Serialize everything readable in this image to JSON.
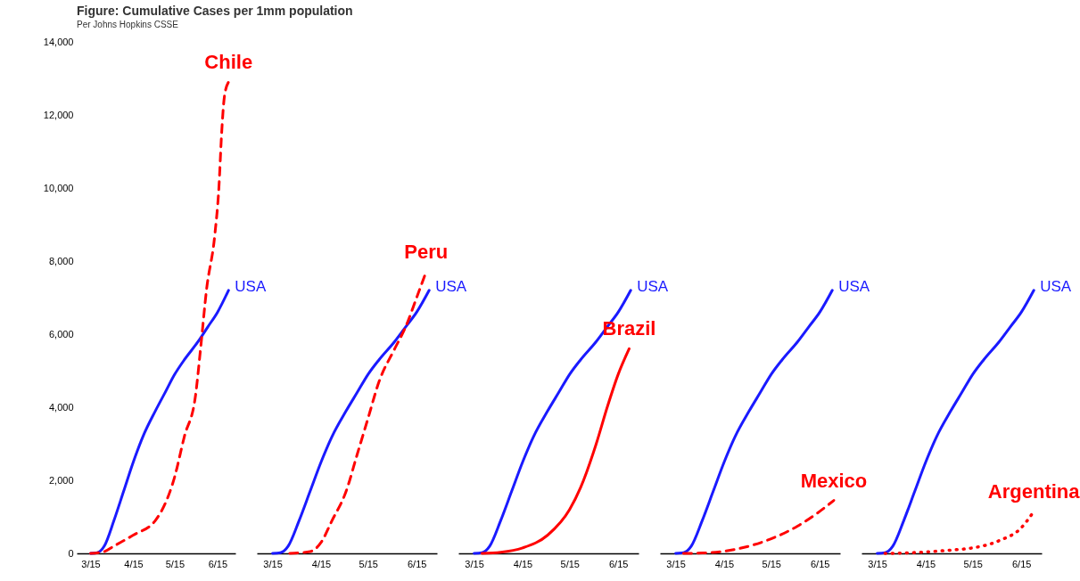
{
  "chart_data": [
    {
      "type": "line",
      "title": "Figure: Cumulative Cases per 1mm population",
      "subtitle": "Per Johns Hopkins CSSE",
      "xlim": [
        "--03-05",
        "--06-28"
      ],
      "xticks": [
        {
          "value": "--03-15",
          "label": "3/15"
        },
        {
          "value": "--04-15",
          "label": "4/15"
        },
        {
          "value": "--05-15",
          "label": "5/15"
        },
        {
          "value": "--06-15",
          "label": "6/15"
        }
      ],
      "ylim": [
        0,
        14000
      ],
      "yticks": [
        {
          "value": 0,
          "label": "0"
        },
        {
          "value": 2000,
          "label": "2,000"
        },
        {
          "value": 4000,
          "label": "4,000"
        },
        {
          "value": 6000,
          "label": "6,000"
        },
        {
          "value": 8000,
          "label": "8,000"
        },
        {
          "value": 10000,
          "label": "10,000"
        },
        {
          "value": 12000,
          "label": "12,000"
        },
        {
          "value": 14000,
          "label": "14,000"
        }
      ],
      "series": [
        {
          "name": "USA",
          "color": "#1a1aff",
          "line_style": "solid",
          "x": [
            "--03-15",
            "--03-20",
            "--03-25",
            "--04-01",
            "--04-08",
            "--04-15",
            "--04-22",
            "--05-01",
            "--05-08",
            "--05-15",
            "--05-22",
            "--06-01",
            "--06-08",
            "--06-15",
            "--06-23"
          ],
          "values": [
            0,
            20,
            200,
            900,
            1700,
            2500,
            3200,
            3900,
            4400,
            4900,
            5300,
            5800,
            6200,
            6600,
            7200
          ]
        },
        {
          "name": "Chile",
          "color": "#ff0000",
          "line_style": "dashed",
          "x": [
            "--03-15",
            "--03-25",
            "--04-01",
            "--04-15",
            "--05-01",
            "--05-15",
            "--05-22",
            "--05-30",
            "--06-03",
            "--06-07",
            "--06-13",
            "--06-16",
            "--06-18",
            "--06-20",
            "--06-23"
          ],
          "values": [
            0,
            50,
            200,
            500,
            900,
            2100,
            3200,
            4300,
            5700,
            7200,
            8700,
            10000,
            11500,
            12500,
            12900
          ]
        }
      ]
    },
    {
      "type": "line",
      "tick_labels": "x",
      "xlim": [
        "--03-05",
        "--06-28"
      ],
      "xticks": [
        {
          "value": "--03-15",
          "label": "3/15"
        },
        {
          "value": "--04-15",
          "label": "4/15"
        },
        {
          "value": "--05-15",
          "label": "5/15"
        },
        {
          "value": "--06-15",
          "label": "6/15"
        }
      ],
      "ylim": [
        0,
        14000
      ],
      "series": [
        {
          "name": "USA",
          "color": "#1a1aff",
          "line_style": "solid",
          "x": [
            "--03-15",
            "--03-20",
            "--03-25",
            "--04-01",
            "--04-08",
            "--04-15",
            "--04-22",
            "--05-01",
            "--05-08",
            "--05-15",
            "--05-22",
            "--06-01",
            "--06-08",
            "--06-15",
            "--06-23"
          ],
          "values": [
            0,
            20,
            200,
            900,
            1700,
            2500,
            3200,
            3900,
            4400,
            4900,
            5300,
            5800,
            6200,
            6600,
            7200
          ]
        },
        {
          "name": "Peru",
          "color": "#ff0000",
          "line_style": "dashed",
          "x": [
            "--03-26",
            "--04-08",
            "--04-15",
            "--04-22",
            "--05-01",
            "--05-08",
            "--05-15",
            "--05-22",
            "--06-01",
            "--06-08",
            "--06-15",
            "--06-21"
          ],
          "values": [
            0,
            50,
            300,
            900,
            1700,
            2700,
            3700,
            4700,
            5600,
            6200,
            7000,
            7700
          ]
        }
      ]
    },
    {
      "type": "line",
      "tick_labels": "x",
      "xlim": [
        "--03-05",
        "--06-28"
      ],
      "xticks": [
        {
          "value": "--03-15",
          "label": "3/15"
        },
        {
          "value": "--04-15",
          "label": "4/15"
        },
        {
          "value": "--05-15",
          "label": "5/15"
        },
        {
          "value": "--06-15",
          "label": "6/15"
        }
      ],
      "ylim": [
        0,
        14000
      ],
      "series": [
        {
          "name": "USA",
          "color": "#1a1aff",
          "line_style": "solid",
          "x": [
            "--03-15",
            "--03-20",
            "--03-25",
            "--04-01",
            "--04-08",
            "--04-15",
            "--04-22",
            "--05-01",
            "--05-08",
            "--05-15",
            "--05-22",
            "--06-01",
            "--06-08",
            "--06-15",
            "--06-23"
          ],
          "values": [
            0,
            20,
            200,
            900,
            1700,
            2500,
            3200,
            3900,
            4400,
            4900,
            5300,
            5800,
            6200,
            6600,
            7200
          ]
        },
        {
          "name": "Brazil",
          "color": "#ff0000",
          "line_style": "solid",
          "x": [
            "--03-20",
            "--04-01",
            "--04-15",
            "--05-01",
            "--05-15",
            "--05-22",
            "--06-01",
            "--06-08",
            "--06-15",
            "--06-22"
          ],
          "values": [
            0,
            30,
            150,
            500,
            1200,
            1800,
            3000,
            4000,
            4900,
            5600
          ]
        }
      ]
    },
    {
      "type": "line",
      "tick_labels": "x",
      "xlim": [
        "--03-05",
        "--06-28"
      ],
      "xticks": [
        {
          "value": "--03-15",
          "label": "3/15"
        },
        {
          "value": "--04-15",
          "label": "4/15"
        },
        {
          "value": "--05-15",
          "label": "5/15"
        },
        {
          "value": "--06-15",
          "label": "6/15"
        }
      ],
      "ylim": [
        0,
        14000
      ],
      "series": [
        {
          "name": "USA",
          "color": "#1a1aff",
          "line_style": "solid",
          "x": [
            "--03-15",
            "--03-20",
            "--03-25",
            "--04-01",
            "--04-08",
            "--04-15",
            "--04-22",
            "--05-01",
            "--05-08",
            "--05-15",
            "--05-22",
            "--06-01",
            "--06-08",
            "--06-15",
            "--06-23"
          ],
          "values": [
            0,
            20,
            200,
            900,
            1700,
            2500,
            3200,
            3900,
            4400,
            4900,
            5300,
            5800,
            6200,
            6600,
            7200
          ]
        },
        {
          "name": "Mexico",
          "color": "#ff0000",
          "line_style": "dashed",
          "x": [
            "--03-20",
            "--04-01",
            "--04-15",
            "--05-01",
            "--05-15",
            "--06-01",
            "--06-15",
            "--06-24"
          ],
          "values": [
            0,
            10,
            60,
            200,
            400,
            750,
            1150,
            1450
          ]
        }
      ]
    },
    {
      "type": "line",
      "tick_labels": "x",
      "xlim": [
        "--03-05",
        "--06-28"
      ],
      "xticks": [
        {
          "value": "--03-15",
          "label": "3/15"
        },
        {
          "value": "--04-15",
          "label": "4/15"
        },
        {
          "value": "--05-15",
          "label": "5/15"
        },
        {
          "value": "--06-15",
          "label": "6/15"
        }
      ],
      "ylim": [
        0,
        14000
      ],
      "series": [
        {
          "name": "USA",
          "color": "#1a1aff",
          "line_style": "solid",
          "x": [
            "--03-15",
            "--03-20",
            "--03-25",
            "--04-01",
            "--04-08",
            "--04-15",
            "--04-22",
            "--05-01",
            "--05-08",
            "--05-15",
            "--05-22",
            "--06-01",
            "--06-08",
            "--06-15",
            "--06-23"
          ],
          "values": [
            0,
            20,
            200,
            900,
            1700,
            2500,
            3200,
            3900,
            4400,
            4900,
            5300,
            5800,
            6200,
            6600,
            7200
          ]
        },
        {
          "name": "Argentina",
          "color": "#ff0000",
          "line_style": "dotted",
          "x": [
            "--03-20",
            "--04-01",
            "--04-15",
            "--05-01",
            "--05-15",
            "--06-01",
            "--06-15",
            "--06-23"
          ],
          "values": [
            0,
            10,
            40,
            90,
            150,
            350,
            700,
            1150
          ]
        }
      ]
    }
  ]
}
